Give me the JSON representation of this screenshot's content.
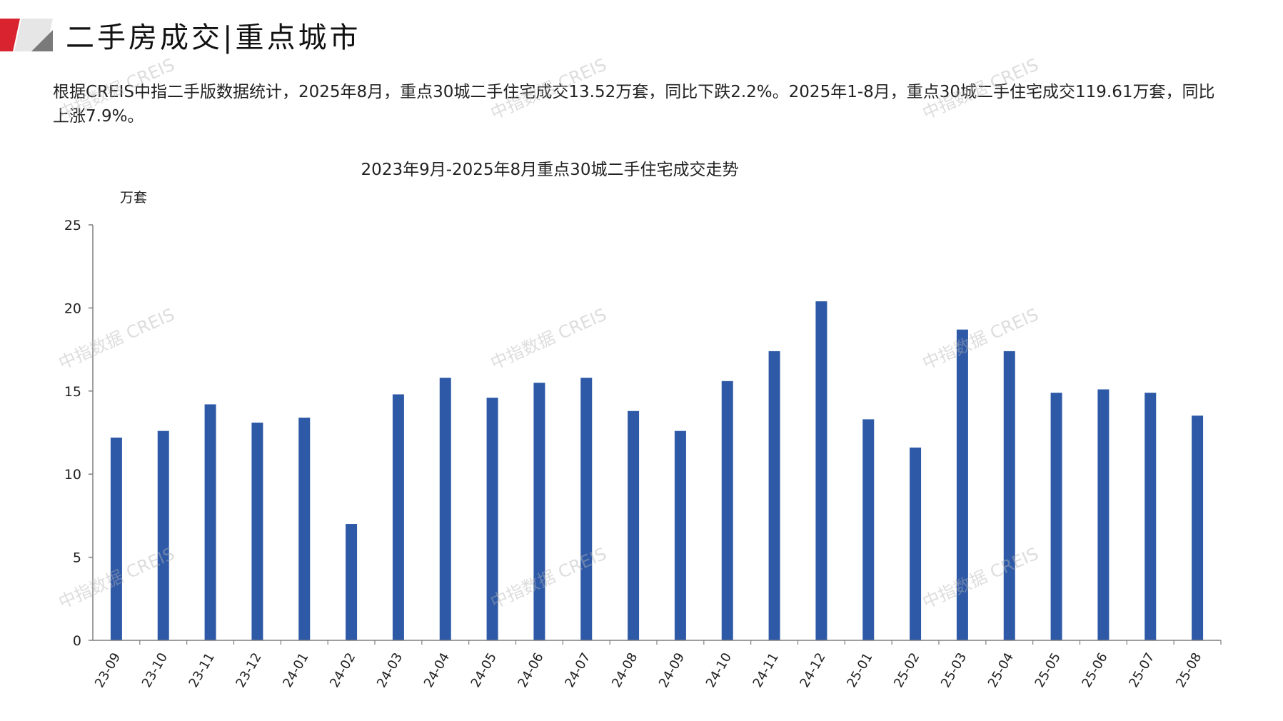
{
  "header": {
    "title": "二手房成交|重点城市"
  },
  "summary": {
    "text": "根据CREIS中指二手版数据统计，2025年8月，重点30城二手住宅成交13.52万套，同比下跌2.2%。2025年1-8月，重点30城二手住宅成交119.61万套，同比上涨7.9%。"
  },
  "watermark": {
    "text": "中指数据 CREIS"
  },
  "colors": {
    "bar": "#2E59A7",
    "axis": "#7f7f7f",
    "logo_red": "#D9232E",
    "logo_gray": "#7a7a7a"
  },
  "chart_data": {
    "type": "bar",
    "title": "2023年9月-2025年8月重点30城二手住宅成交走势",
    "ylabel": "万套",
    "xlabel": "",
    "ylim": [
      0,
      25
    ],
    "yticks": [
      0,
      5,
      10,
      15,
      20,
      25
    ],
    "grid": false,
    "legend": "none",
    "categories": [
      "23-09",
      "23-10",
      "23-11",
      "23-12",
      "24-01",
      "24-02",
      "24-03",
      "24-04",
      "24-05",
      "24-06",
      "24-07",
      "24-08",
      "24-09",
      "24-10",
      "24-11",
      "24-12",
      "25-01",
      "25-02",
      "25-03",
      "25-04",
      "25-05",
      "25-06",
      "25-07",
      "25-08"
    ],
    "values": [
      12.2,
      12.6,
      14.2,
      13.1,
      13.4,
      7.0,
      14.8,
      15.8,
      14.6,
      15.5,
      15.8,
      13.8,
      12.6,
      15.6,
      17.4,
      20.4,
      13.3,
      11.6,
      18.7,
      17.4,
      14.9,
      15.1,
      14.9,
      13.52
    ]
  }
}
